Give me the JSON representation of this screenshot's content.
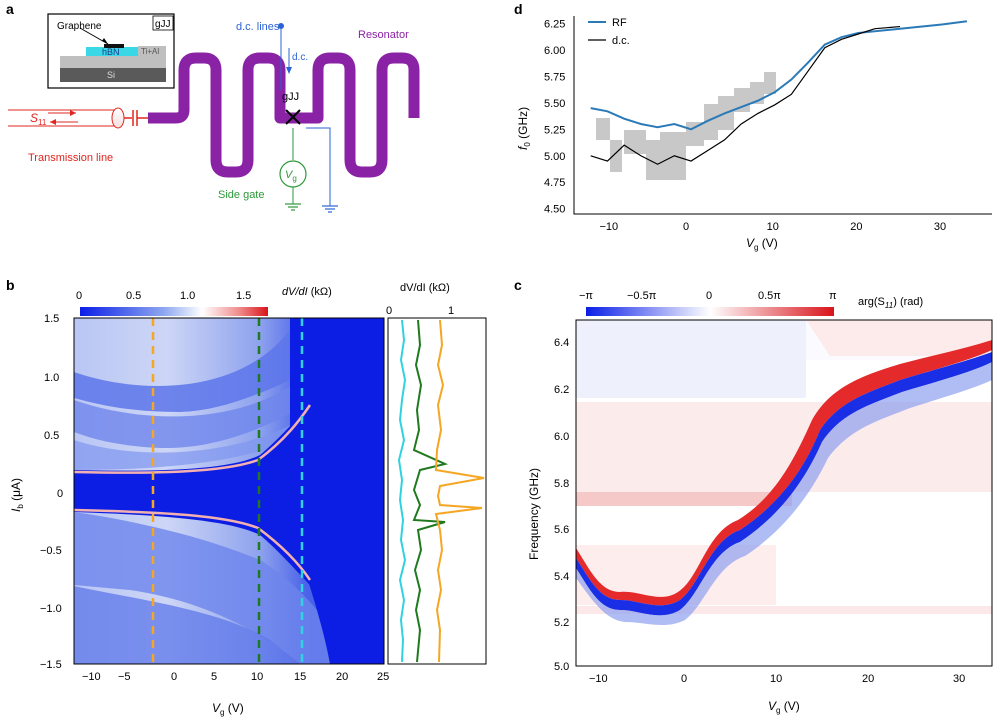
{
  "panel_a": {
    "letter": "a",
    "inset_material_top": "Graphene",
    "inset_hbn": "hBN",
    "inset_tial": "Ti+Al",
    "inset_si": "Si",
    "inset_tag": "gJJ",
    "dc_lines": "d.c. lines",
    "dc": "d.c.",
    "resonator": "Resonator",
    "gjj": "gJJ",
    "s11_main": "S",
    "s11_sub": "11",
    "transmission_line": "Transmission line",
    "vg_main": "V",
    "vg_sub": "g",
    "side_gate": "Side gate",
    "colors": {
      "resonator": "#8a22a5",
      "dc": "#2a63d6",
      "rf": "#e0251f",
      "gate": "#2e9a3b"
    }
  },
  "panel_d": {
    "letter": "d",
    "xlabel_main": "V",
    "xlabel_sub": "g",
    "xlabel_unit": " (V)",
    "ylabel_main": "f",
    "ylabel_sub": "0",
    "ylabel_unit": " (GHz)",
    "legend": [
      "RF",
      "d.c."
    ],
    "xticks": [
      "−10",
      "0",
      "10",
      "20",
      "30"
    ],
    "yticks": [
      "4.50",
      "4.75",
      "5.00",
      "5.25",
      "5.50",
      "5.75",
      "6.00",
      "6.25"
    ]
  },
  "panel_b": {
    "letter": "b",
    "colorbar_title_main": "dV/dI",
    "colorbar_title_unit": " (kΩ)",
    "colorbar_ticks": [
      "0",
      "0.5",
      "1.0",
      "1.5"
    ],
    "linecut_title": "dV/dI (kΩ)",
    "linecut_ticks": [
      "0",
      "1"
    ],
    "xlabel_main": "V",
    "xlabel_sub": "g",
    "xlabel_unit": " (V)",
    "ylabel_main": "I",
    "ylabel_sub": "b",
    "ylabel_unit": " (μA)",
    "xticks": [
      "−10",
      "−5",
      "0",
      "5",
      "10",
      "15",
      "20",
      "25"
    ],
    "yticks": [
      "1.5",
      "1.0",
      "0.5",
      "0",
      "−0.5",
      "−1.0",
      "−1.5"
    ],
    "cut_colors": [
      "#f5a623",
      "#1f7a1f",
      "#2fd3e0"
    ],
    "cut_positions_vg": [
      -2.5,
      10,
      15
    ]
  },
  "panel_c": {
    "letter": "c",
    "colorbar_ticks": [
      "−π",
      "−0.5π",
      "0",
      "0.5π",
      "π"
    ],
    "colorbar_title": "arg(S",
    "colorbar_title_sub": "11",
    "colorbar_title_unit": ") (rad)",
    "xlabel_main": "V",
    "xlabel_sub": "g",
    "xlabel_unit": " (V)",
    "ylabel": "Frequency (GHz)",
    "xticks": [
      "−10",
      "0",
      "10",
      "20",
      "30"
    ],
    "yticks": [
      "6.4",
      "6.2",
      "6.0",
      "5.8",
      "5.6",
      "5.4",
      "5.2",
      "5.0"
    ]
  },
  "chart_data": [
    {
      "type": "line",
      "panel": "d",
      "xlabel": "Vg (V)",
      "ylabel": "f0 (GHz)",
      "xlim": [
        -14,
        36
      ],
      "ylim": [
        4.45,
        6.32
      ],
      "series": [
        {
          "name": "RF",
          "color": "#2a7ab8",
          "x": [
            -12,
            -10,
            -8,
            -6,
            -4,
            -2,
            0,
            2,
            4,
            6,
            8,
            10,
            12,
            14,
            16,
            18,
            20,
            25,
            30,
            33
          ],
          "y": [
            5.45,
            5.42,
            5.35,
            5.3,
            5.27,
            5.3,
            5.25,
            5.33,
            5.4,
            5.46,
            5.52,
            5.6,
            5.72,
            5.88,
            6.05,
            6.12,
            6.16,
            6.2,
            6.24,
            6.27
          ]
        },
        {
          "name": "d.c.",
          "color": "#000000",
          "x": [
            -12,
            -10,
            -8,
            -6,
            -4,
            -2,
            0,
            2,
            4,
            6,
            8,
            10,
            12,
            14,
            16,
            18,
            20,
            22,
            25
          ],
          "y": [
            5.0,
            4.95,
            5.1,
            5.0,
            4.92,
            5.0,
            4.95,
            5.05,
            5.15,
            5.3,
            5.4,
            5.48,
            5.58,
            5.8,
            6.02,
            6.1,
            6.15,
            6.2,
            6.22
          ]
        }
      ]
    }
  ]
}
